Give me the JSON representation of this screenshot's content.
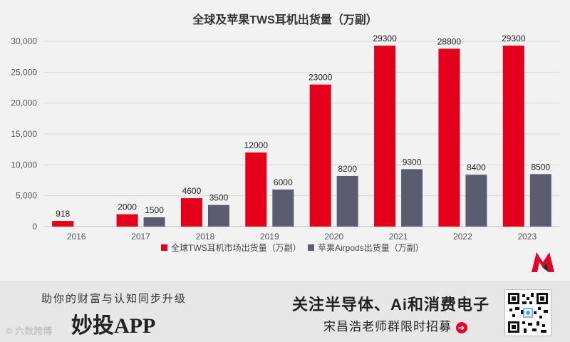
{
  "chart_data": {
    "type": "bar",
    "title": "全球及苹果TWS耳机出货量（万副）",
    "categories": [
      "2016",
      "2017",
      "2018",
      "2019",
      "2020",
      "2021",
      "2022",
      "2023"
    ],
    "series": [
      {
        "name": "全球TWS耳机市场出货量（万副）",
        "color": "#e4001b",
        "values": [
          918,
          2000,
          4600,
          12000,
          23000,
          29300,
          28800,
          29300
        ]
      },
      {
        "name": "苹果Airpods出货量（万副）",
        "color": "#5c5c71",
        "values": [
          null,
          1500,
          3500,
          6000,
          8200,
          9300,
          8400,
          8500
        ]
      }
    ],
    "ylim": [
      0,
      30000
    ],
    "yticks": [
      "0",
      "5,000",
      "10,000",
      "15,000",
      "20,000",
      "25,000",
      "30,000"
    ],
    "xlabel": "",
    "ylabel": "",
    "grid": true,
    "legend": "bottom"
  },
  "banner": {
    "slogan": "助你的财富与认知同步升级",
    "app_name": "妙投APP",
    "watermark": "© 六数跨博",
    "promo_line1": "关注半导体、Ai和消费电子",
    "promo_line2": "宋昌浩老师群限时招募"
  },
  "colors": {
    "accent": "#e4002b",
    "bar_red": "#e4001b",
    "bar_gray": "#5c5c71"
  }
}
